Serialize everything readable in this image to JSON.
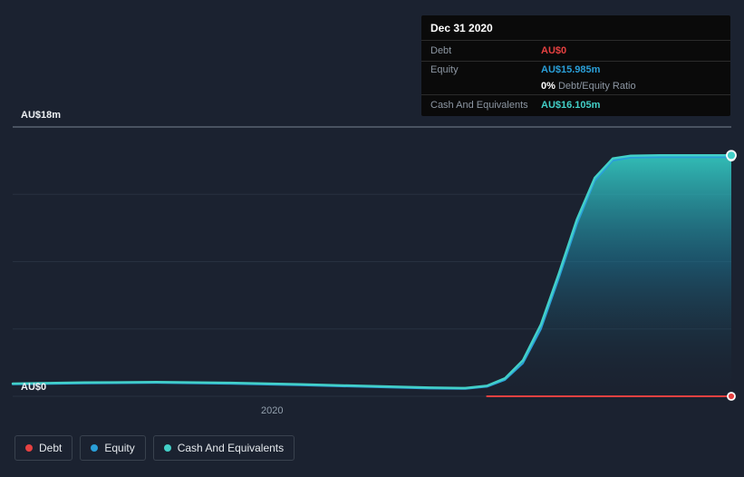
{
  "tooltip": {
    "title": "Dec 31 2020",
    "debt_label": "Debt",
    "debt_value": "AU$0",
    "equity_label": "Equity",
    "equity_value": "AU$15.985m",
    "ratio_value": "0%",
    "ratio_label": "Debt/Equity Ratio",
    "cash_label": "Cash And Equivalents",
    "cash_value": "AU$16.105m"
  },
  "chart_data": {
    "type": "area",
    "title": "",
    "xlabel": "",
    "ylabel": "",
    "ylim": [
      0,
      18
    ],
    "y_top_label": "AU$18m",
    "y_bottom_label": "AU$0",
    "x_ticks": [
      {
        "label": "2020",
        "pos": 0.365
      }
    ],
    "grid": true,
    "legend_position": "bottom-left",
    "background_color": "#1b2230",
    "series": [
      {
        "name": "Debt",
        "color": "#e64141",
        "width": 2,
        "fill": false,
        "end_marker": true,
        "end_value": 0,
        "points": [
          [
            0.66,
            0
          ],
          [
            1,
            0
          ]
        ]
      },
      {
        "name": "Equity",
        "color": "#2a9fd8",
        "width": 2,
        "fill": false,
        "end_marker": true,
        "end_value": 15.985,
        "points": [
          [
            0,
            0.8
          ],
          [
            0.1,
            0.86
          ],
          [
            0.2,
            0.9
          ],
          [
            0.3,
            0.84
          ],
          [
            0.4,
            0.74
          ],
          [
            0.5,
            0.62
          ],
          [
            0.58,
            0.52
          ],
          [
            0.63,
            0.5
          ],
          [
            0.66,
            0.64
          ],
          [
            0.685,
            1.1
          ],
          [
            0.71,
            2.2
          ],
          [
            0.735,
            4.5
          ],
          [
            0.76,
            7.9
          ],
          [
            0.785,
            11.5
          ],
          [
            0.81,
            14.4
          ],
          [
            0.835,
            15.75
          ],
          [
            0.86,
            15.95
          ],
          [
            0.9,
            15.98
          ],
          [
            1,
            15.985
          ]
        ]
      },
      {
        "name": "Cash And Equivalents",
        "color": "#43d0c8",
        "width": 2.5,
        "fill": true,
        "end_marker": true,
        "end_value": 16.105,
        "points": [
          [
            0,
            0.85
          ],
          [
            0.1,
            0.92
          ],
          [
            0.2,
            0.95
          ],
          [
            0.3,
            0.9
          ],
          [
            0.4,
            0.8
          ],
          [
            0.5,
            0.68
          ],
          [
            0.58,
            0.58
          ],
          [
            0.63,
            0.55
          ],
          [
            0.66,
            0.7
          ],
          [
            0.685,
            1.2
          ],
          [
            0.71,
            2.4
          ],
          [
            0.735,
            4.8
          ],
          [
            0.76,
            8.2
          ],
          [
            0.785,
            11.8
          ],
          [
            0.81,
            14.6
          ],
          [
            0.835,
            15.9
          ],
          [
            0.86,
            16.08
          ],
          [
            0.9,
            16.1
          ],
          [
            1,
            16.105
          ]
        ]
      }
    ]
  }
}
